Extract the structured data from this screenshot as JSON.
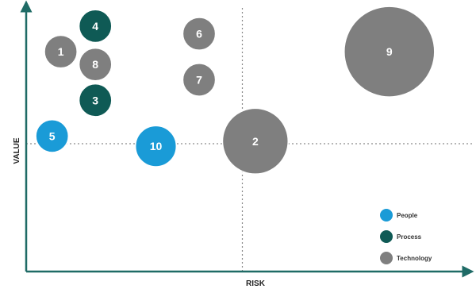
{
  "colors": {
    "axis": "#1f6b66",
    "crosshair": "#8a8a8a",
    "people": "#1a9bd7",
    "process": "#0f5a55",
    "technology": "#7f7f7f"
  },
  "chart_data": {
    "type": "scatter",
    "xlabel": "RISK",
    "ylabel": "VALUE",
    "xlim": [
      0,
      100
    ],
    "ylim": [
      0,
      100
    ],
    "grid": false,
    "reference_lines": {
      "x": 50,
      "y": 50
    },
    "legend_position": "bottom-right",
    "categories": [
      {
        "key": "people",
        "label": "People"
      },
      {
        "key": "process",
        "label": "Process"
      },
      {
        "key": "technology",
        "label": "Technology"
      }
    ],
    "points": [
      {
        "label": "1",
        "category": "technology",
        "x": 8,
        "y": 86,
        "size": 3
      },
      {
        "label": "2",
        "category": "technology",
        "x": 53,
        "y": 51,
        "size": 7
      },
      {
        "label": "3",
        "category": "process",
        "x": 16,
        "y": 67,
        "size": 3
      },
      {
        "label": "4",
        "category": "process",
        "x": 16,
        "y": 96,
        "size": 3
      },
      {
        "label": "5",
        "category": "people",
        "x": 6,
        "y": 53,
        "size": 3
      },
      {
        "label": "6",
        "category": "technology",
        "x": 40,
        "y": 93,
        "size": 3
      },
      {
        "label": "7",
        "category": "technology",
        "x": 40,
        "y": 75,
        "size": 3
      },
      {
        "label": "8",
        "category": "technology",
        "x": 16,
        "y": 81,
        "size": 3
      },
      {
        "label": "9",
        "category": "technology",
        "x": 84,
        "y": 86,
        "size": 10
      },
      {
        "label": "10",
        "category": "people",
        "x": 30,
        "y": 49,
        "size": 4
      }
    ]
  }
}
